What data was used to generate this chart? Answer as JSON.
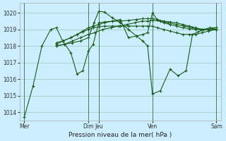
{
  "background_color": "#cceeff",
  "grid_color": "#99ccbb",
  "line_color": "#1a5c1a",
  "xlabel": "Pression niveau de la mer( hPa )",
  "ylim": [
    1013.5,
    1020.6
  ],
  "yticks": [
    1014,
    1015,
    1016,
    1017,
    1018,
    1019,
    1020
  ],
  "vline_color": "#336633",
  "lines": [
    {
      "x": [
        0.0,
        0.55,
        1.1,
        1.65,
        2.0,
        2.4,
        2.9,
        3.3,
        3.65,
        4.0,
        4.3,
        4.65,
        5.0,
        5.5,
        6.0,
        6.5,
        7.0,
        7.4,
        7.7,
        8.0,
        8.3,
        8.7,
        9.1,
        9.5,
        9.9,
        10.3,
        10.7,
        11.1,
        11.5,
        12.0
      ],
      "y": [
        1013.7,
        1015.6,
        1018.0,
        1019.0,
        1019.1,
        1018.3,
        1017.6,
        1016.3,
        1016.5,
        1017.7,
        1018.1,
        1019.4,
        1019.45,
        1019.5,
        1019.6,
        1018.5,
        1018.6,
        1018.7,
        1018.8,
        1020.0,
        1019.6,
        1019.4,
        1019.3,
        1019.2,
        1019.1,
        1019.05,
        1019.0,
        1019.0,
        1019.0,
        1019.1
      ]
    },
    {
      "x": [
        2.0,
        2.4,
        2.9,
        3.3,
        3.65,
        4.0,
        4.3,
        4.65,
        5.0,
        5.5,
        6.0,
        6.5,
        7.0,
        7.4,
        7.7,
        8.0,
        8.3,
        8.7,
        9.1,
        9.5,
        9.9,
        10.3,
        10.7,
        11.1,
        11.5,
        12.0
      ],
      "y": [
        1018.2,
        1018.3,
        1018.5,
        1018.7,
        1018.9,
        1019.1,
        1019.2,
        1019.3,
        1019.4,
        1019.5,
        1019.5,
        1019.55,
        1019.6,
        1019.65,
        1019.65,
        1019.65,
        1019.6,
        1019.5,
        1019.45,
        1019.4,
        1019.3,
        1019.2,
        1019.1,
        1019.0,
        1019.0,
        1019.0
      ]
    },
    {
      "x": [
        2.0,
        2.4,
        2.9,
        3.3,
        3.65,
        4.0,
        4.3,
        4.65,
        5.0,
        5.5,
        6.0,
        6.5,
        7.0,
        7.4,
        7.7,
        8.0,
        8.3,
        8.7,
        9.1,
        9.5,
        9.9,
        10.3,
        10.7,
        11.1,
        11.5,
        12.0
      ],
      "y": [
        1018.1,
        1018.3,
        1018.5,
        1018.7,
        1018.85,
        1019.0,
        1019.1,
        1019.15,
        1019.2,
        1019.2,
        1019.2,
        1019.2,
        1019.2,
        1019.2,
        1019.2,
        1019.2,
        1019.1,
        1019.0,
        1018.9,
        1018.8,
        1018.7,
        1018.7,
        1018.7,
        1018.8,
        1018.9,
        1019.0
      ]
    },
    {
      "x": [
        2.0,
        2.5,
        3.0,
        3.5,
        4.0,
        4.4,
        4.9,
        5.4,
        5.9,
        6.4,
        6.9,
        7.35,
        7.7,
        8.0,
        8.5,
        9.0,
        9.5,
        10.0,
        10.5,
        11.0,
        11.5,
        12.0
      ],
      "y": [
        1018.0,
        1018.1,
        1018.3,
        1018.5,
        1018.7,
        1018.8,
        1019.0,
        1019.1,
        1019.2,
        1019.3,
        1019.4,
        1019.5,
        1019.5,
        1019.55,
        1019.5,
        1019.4,
        1019.3,
        1019.2,
        1019.1,
        1019.0,
        1019.0,
        1019.0
      ]
    },
    {
      "x": [
        2.0,
        2.5,
        3.0,
        3.5,
        4.0,
        4.35,
        4.65,
        5.0,
        5.5,
        6.0,
        6.5,
        7.0,
        7.4,
        7.7,
        8.0,
        8.5,
        9.1,
        9.6,
        10.1,
        10.5,
        10.85,
        11.2,
        11.6,
        12.0
      ],
      "y": [
        1018.0,
        1018.1,
        1018.2,
        1018.3,
        1018.5,
        1019.4,
        1020.1,
        1020.05,
        1019.7,
        1019.4,
        1019.0,
        1018.6,
        1018.3,
        1018.0,
        1015.1,
        1015.3,
        1016.6,
        1016.2,
        1016.5,
        1018.7,
        1018.85,
        1019.0,
        1019.1,
        1019.1
      ]
    }
  ],
  "vlines": [
    0.0,
    4.0,
    4.65,
    8.0,
    12.0
  ],
  "xtick_positions": [
    0.0,
    4.0,
    4.65,
    8.0,
    12.0
  ],
  "xtick_labels": [
    "Mer",
    "Dim",
    "Jeu",
    "Ven",
    "Sam"
  ],
  "xlim": [
    -0.3,
    12.3
  ]
}
